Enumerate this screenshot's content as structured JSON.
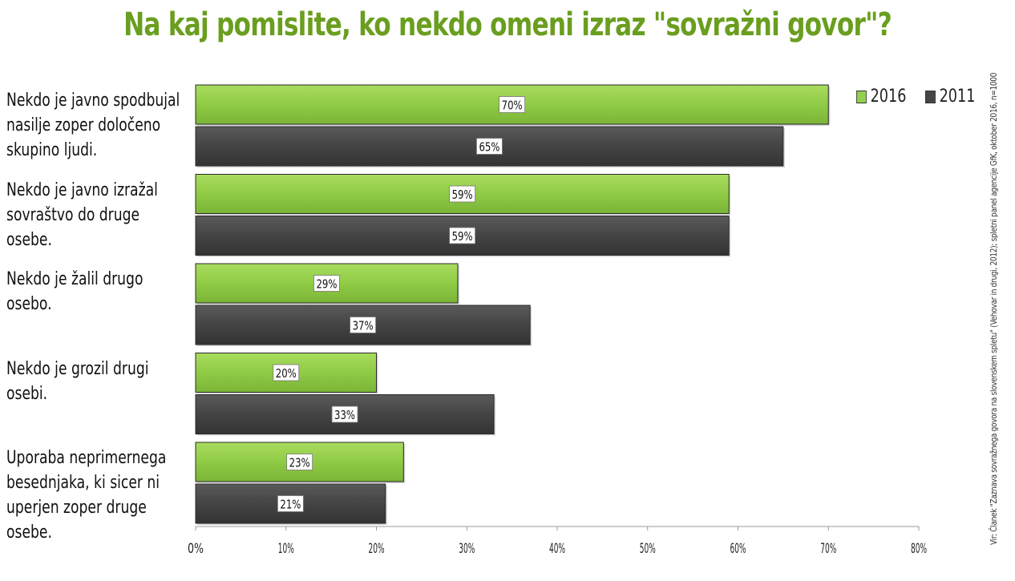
{
  "chart_data": {
    "type": "bar",
    "orientation": "horizontal",
    "title": "Na kaj pomislite, ko nekdo omeni izraz \"sovražni govor\"?",
    "categories": [
      [
        "Nekdo je javno spodbujal",
        "nasilje zoper določeno",
        "skupino ljudi."
      ],
      [
        "Nekdo je javno izražal",
        "sovraštvo do druge osebe."
      ],
      [
        "Nekdo je žalil drugo osebo."
      ],
      [
        "Nekdo je grozil drugi osebi."
      ],
      [
        "Uporaba neprimernega",
        "besednjaka, ki sicer ni",
        "uperjen zoper druge osebe."
      ]
    ],
    "series": [
      {
        "name": "2016",
        "values": [
          70,
          59,
          29,
          20,
          23
        ],
        "color": "#92d050"
      },
      {
        "name": "2011",
        "values": [
          65,
          59,
          37,
          33,
          21
        ],
        "color": "#454545"
      }
    ],
    "data_labels": [
      [
        "70%",
        "59%",
        "29%",
        "20%",
        "23%"
      ],
      [
        "65%",
        "59%",
        "37%",
        "33%",
        "21%"
      ]
    ],
    "xlim": [
      0,
      80
    ],
    "xticks": [
      "0%",
      "10%",
      "20%",
      "30%",
      "40%",
      "50%",
      "60%",
      "70%",
      "80%"
    ],
    "grid": false,
    "legend_position": "top-right",
    "source": "Vir: Članek \"Zaznava sovražnega govora na slovenskem spletu\" (Vehovar in drugi, 2012); spletni panel agencije GfK, oktober 2016, n=1000"
  }
}
